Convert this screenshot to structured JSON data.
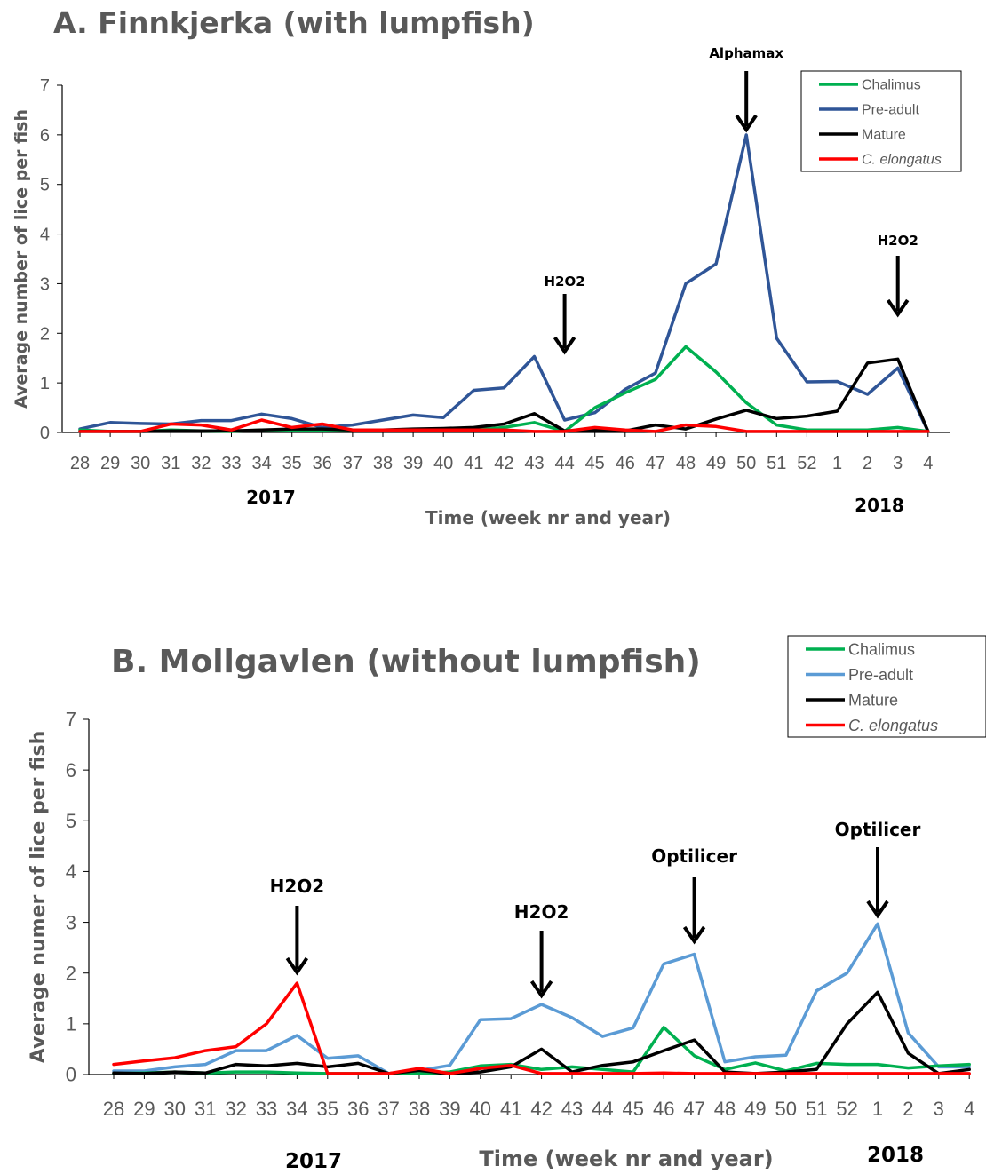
{
  "chart_data": [
    {
      "type": "line",
      "title": "A. Finnkjerka (with lumpfish)",
      "xlabel": "Time (week nr and year)",
      "ylabel": "Average number of lice per fish",
      "ylim": [
        0,
        7
      ],
      "yticks": [
        "0",
        "1",
        "2",
        "3",
        "4",
        "5",
        "6",
        "7"
      ],
      "categories": [
        "28",
        "29",
        "30",
        "31",
        "32",
        "33",
        "34",
        "35",
        "36",
        "37",
        "38",
        "39",
        "40",
        "41",
        "42",
        "43",
        "44",
        "45",
        "46",
        "47",
        "48",
        "49",
        "50",
        "51",
        "52",
        "1",
        "2",
        "3",
        "4"
      ],
      "years": [
        "2017",
        "2018"
      ],
      "legend_position": "top-right",
      "series": [
        {
          "name": "Chalimus",
          "color": "#00b050",
          "italic": false,
          "values": [
            0.05,
            0.02,
            0.02,
            0.05,
            0.03,
            0.02,
            0.05,
            0.05,
            0.05,
            0.05,
            0.05,
            0.05,
            0.05,
            0.05,
            0.1,
            0.2,
            0.02,
            0.5,
            0.8,
            1.07,
            1.73,
            1.22,
            0.6,
            0.15,
            0.05,
            0.05,
            0.05,
            0.1,
            0.02
          ]
        },
        {
          "name": "Pre-adult",
          "color": "#2f5597",
          "italic": false,
          "values": [
            0.07,
            0.2,
            0.18,
            0.17,
            0.24,
            0.24,
            0.37,
            0.28,
            0.1,
            0.15,
            0.25,
            0.35,
            0.3,
            0.85,
            0.9,
            1.53,
            0.25,
            0.4,
            0.87,
            1.2,
            3.0,
            3.4,
            6.0,
            1.9,
            1.02,
            1.03,
            0.77,
            1.3,
            0.02
          ]
        },
        {
          "name": "Mature",
          "color": "#000000",
          "italic": false,
          "values": [
            0.02,
            0.02,
            0.02,
            0.03,
            0.03,
            0.03,
            0.05,
            0.07,
            0.07,
            0.05,
            0.05,
            0.07,
            0.08,
            0.1,
            0.17,
            0.38,
            0.03,
            0.05,
            0.03,
            0.15,
            0.07,
            0.27,
            0.45,
            0.28,
            0.33,
            0.43,
            1.4,
            1.48,
            0.02
          ]
        },
        {
          "name": "C. elongatus",
          "color": "#ff0000",
          "italic": true,
          "values": [
            0.02,
            0.02,
            0.02,
            0.17,
            0.15,
            0.05,
            0.25,
            0.1,
            0.17,
            0.05,
            0.05,
            0.05,
            0.05,
            0.05,
            0.05,
            0.02,
            0.02,
            0.1,
            0.05,
            0.02,
            0.15,
            0.12,
            0.02,
            0.02,
            0.02,
            0.02,
            0.02,
            0.02,
            0.02
          ]
        }
      ],
      "annotations": [
        {
          "text": "Alphamax",
          "week": "50"
        },
        {
          "text": "H2O2",
          "week": "44"
        },
        {
          "text": "H2O2",
          "week": "3"
        }
      ]
    },
    {
      "type": "line",
      "title": "B. Mollgavlen (without lumpfish)",
      "xlabel": "Time (week nr and year)",
      "ylabel": "Average numer of lice per fish",
      "ylim": [
        0,
        7
      ],
      "yticks": [
        "0",
        "1",
        "2",
        "3",
        "4",
        "5",
        "6",
        "7"
      ],
      "categories": [
        "28",
        "29",
        "30",
        "31",
        "32",
        "33",
        "34",
        "35",
        "36",
        "37",
        "38",
        "39",
        "40",
        "41",
        "42",
        "43",
        "44",
        "45",
        "46",
        "47",
        "48",
        "49",
        "50",
        "51",
        "52",
        "1",
        "2",
        "3",
        "4"
      ],
      "years": [
        "2017",
        "2018"
      ],
      "legend_position": "top-right",
      "series": [
        {
          "name": "Chalimus",
          "color": "#00b050",
          "italic": false,
          "values": [
            0.02,
            0.03,
            0.05,
            0.03,
            0.05,
            0.05,
            0.03,
            0.02,
            0.02,
            0.02,
            0.02,
            0.05,
            0.17,
            0.2,
            0.1,
            0.15,
            0.1,
            0.05,
            0.93,
            0.37,
            0.1,
            0.23,
            0.07,
            0.22,
            0.2,
            0.2,
            0.13,
            0.17,
            0.2
          ]
        },
        {
          "name": "Pre-adult",
          "color": "#5b9bd5",
          "italic": false,
          "values": [
            0.07,
            0.07,
            0.15,
            0.2,
            0.47,
            0.47,
            0.77,
            0.32,
            0.37,
            0.02,
            0.08,
            0.18,
            1.08,
            1.1,
            1.38,
            1.12,
            0.75,
            0.92,
            2.18,
            2.37,
            0.25,
            0.35,
            0.38,
            1.65,
            2.0,
            2.97,
            0.82,
            0.15,
            0.15
          ]
        },
        {
          "name": "Mature",
          "color": "#000000",
          "italic": false,
          "values": [
            0.03,
            0.02,
            0.05,
            0.03,
            0.2,
            0.17,
            0.22,
            0.15,
            0.22,
            0.02,
            0.08,
            0.02,
            0.05,
            0.15,
            0.5,
            0.05,
            0.18,
            0.25,
            0.47,
            0.68,
            0.05,
            0.02,
            0.05,
            0.1,
            1.0,
            1.62,
            0.42,
            0.02,
            0.1
          ]
        },
        {
          "name": "C. elongatus",
          "color": "#ff0000",
          "italic": true,
          "values": [
            0.2,
            0.27,
            0.33,
            0.47,
            0.55,
            1.0,
            1.8,
            0.02,
            0.02,
            0.02,
            0.12,
            0.02,
            0.12,
            0.18,
            0.02,
            0.02,
            0.02,
            0.02,
            0.03,
            0.02,
            0.02,
            0.02,
            0.02,
            0.02,
            0.02,
            0.02,
            0.02,
            0.02,
            0.02
          ]
        }
      ],
      "annotations": [
        {
          "text": "H2O2",
          "week": "34"
        },
        {
          "text": "H2O2",
          "week": "42"
        },
        {
          "text": "Optilicer",
          "week": "47"
        },
        {
          "text": "Optilicer",
          "week": "1"
        }
      ]
    }
  ]
}
